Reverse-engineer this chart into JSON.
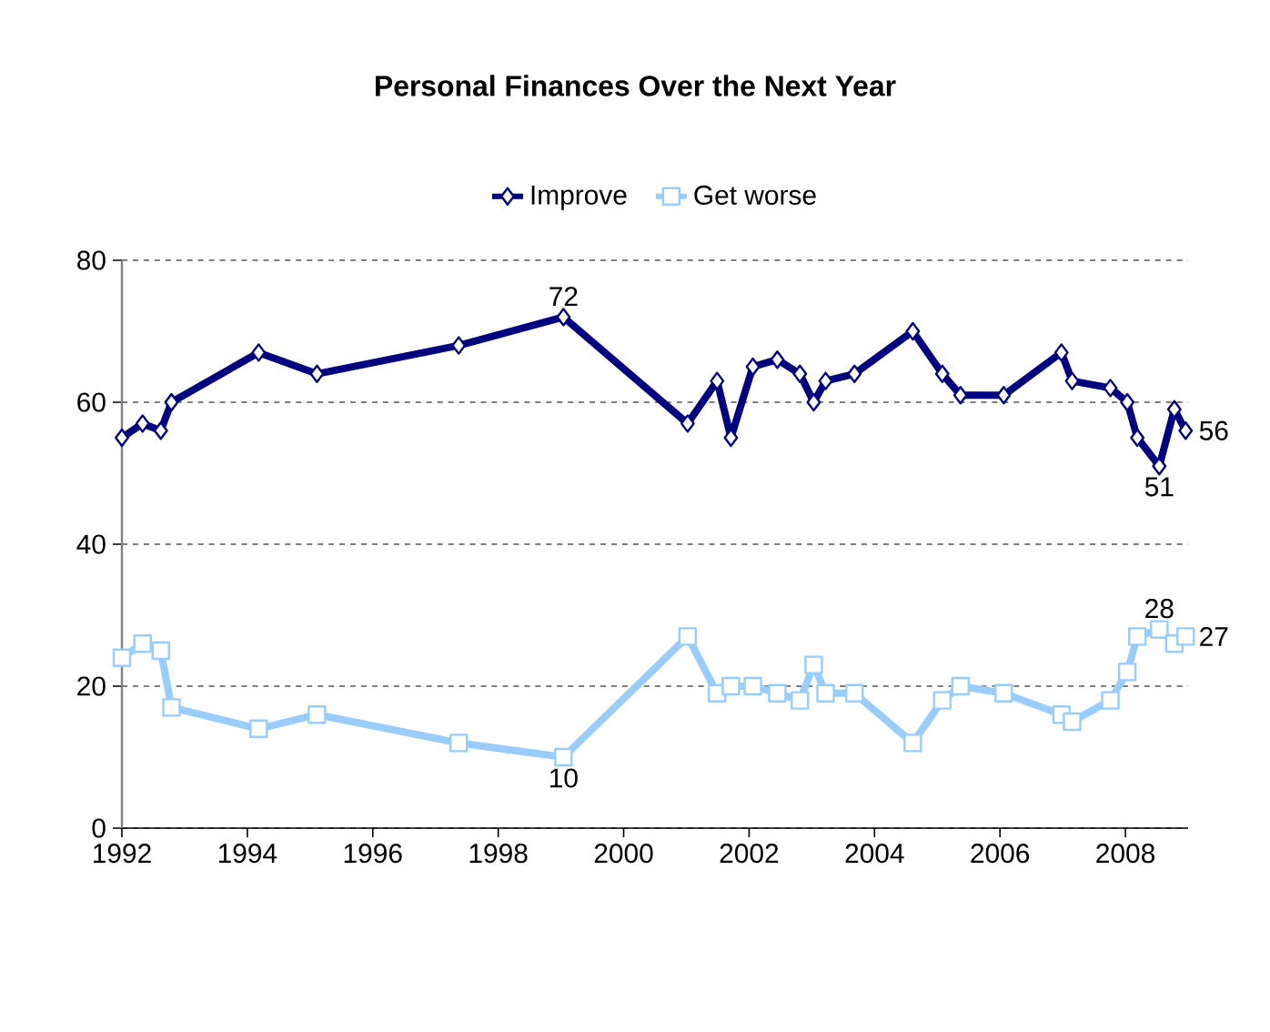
{
  "chart_data": {
    "type": "line",
    "title": "Personal Finances Over the Next Year",
    "x": [
      1992.0,
      1992.33,
      1992.62,
      1992.79,
      1994.18,
      1995.11,
      1997.37,
      1999.04,
      2001.02,
      2001.49,
      2001.71,
      2002.06,
      2002.45,
      2002.81,
      2003.03,
      2003.22,
      2003.68,
      2004.61,
      2005.08,
      2005.37,
      2006.06,
      2006.98,
      2007.15,
      2007.76,
      2008.03,
      2008.19,
      2008.54,
      2008.78,
      2008.96
    ],
    "series": [
      {
        "name": "Improve",
        "color": "#000080",
        "marker": "diamond",
        "values": [
          55,
          57,
          56,
          60,
          67,
          64,
          68,
          72,
          57,
          63,
          55,
          65,
          66,
          64,
          60,
          63,
          64,
          70,
          64,
          61,
          61,
          67,
          63,
          62,
          60,
          55,
          51,
          59,
          56
        ]
      },
      {
        "name": "Get worse",
        "color": "#99ccff",
        "marker": "square",
        "values": [
          24,
          26,
          25,
          17,
          14,
          16,
          12,
          10,
          27,
          19,
          20,
          20,
          19,
          18,
          23,
          19,
          19,
          12,
          18,
          20,
          19,
          16,
          15,
          18,
          22,
          27,
          28,
          26,
          27
        ]
      }
    ],
    "xlim": [
      1992,
      2009
    ],
    "xticks": [
      1992,
      1994,
      1996,
      1998,
      2000,
      2002,
      2004,
      2006,
      2008
    ],
    "ylim": [
      0,
      80
    ],
    "yticks": [
      0,
      20,
      40,
      60,
      80
    ],
    "grid": "y",
    "legend": "top",
    "annotations": [
      {
        "text": "72",
        "x": 1999.04,
        "y": 72
      },
      {
        "text": "51",
        "x": 2008.54,
        "y": 51
      },
      {
        "text": "56",
        "x": 2008.96,
        "y": 56
      },
      {
        "text": "10",
        "x": 1999.04,
        "y": 10
      },
      {
        "text": "28",
        "x": 2008.54,
        "y": 28
      },
      {
        "text": "27",
        "x": 2008.96,
        "y": 27
      }
    ]
  }
}
